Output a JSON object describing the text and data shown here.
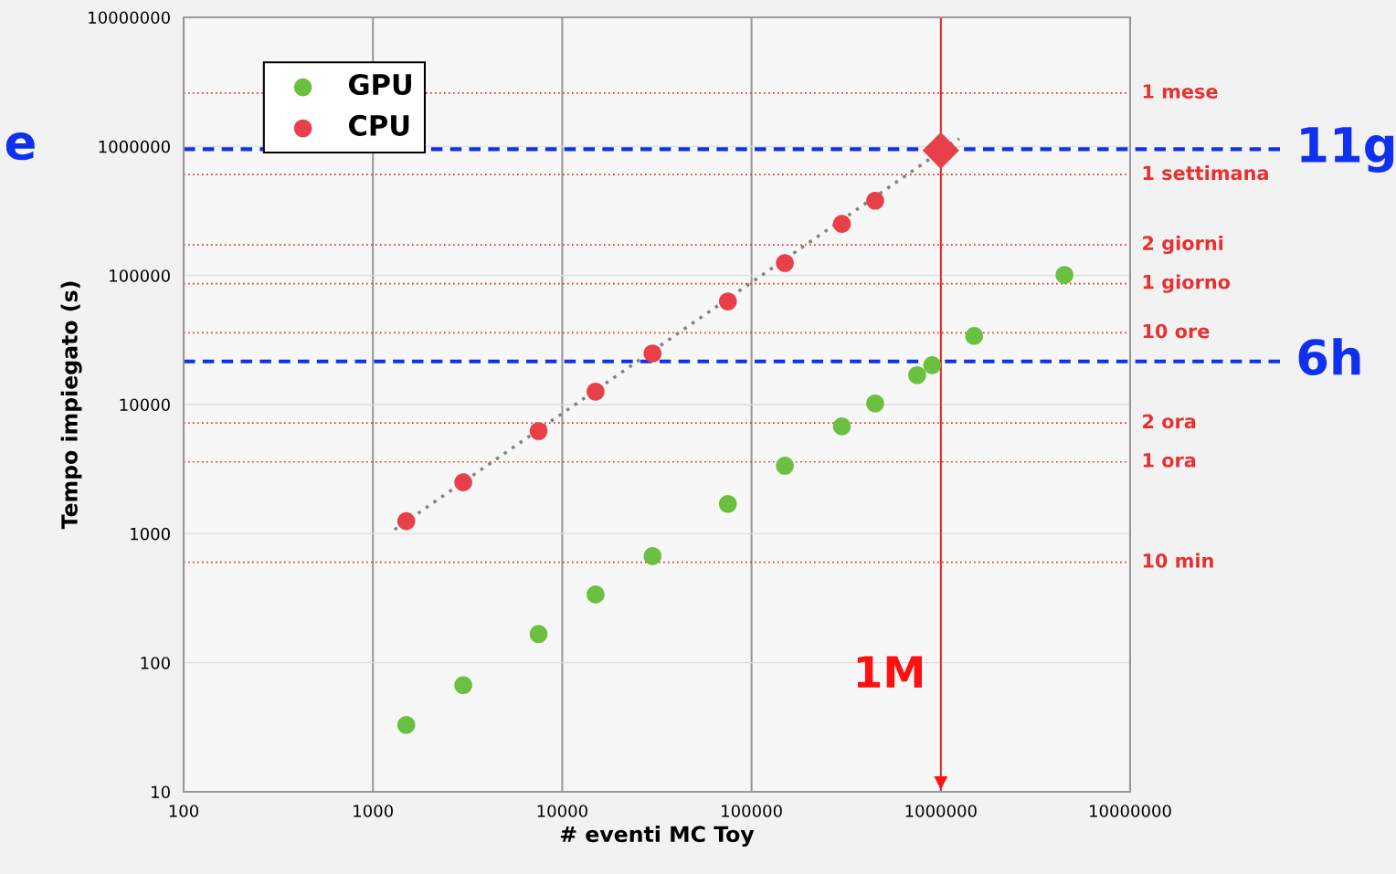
{
  "chart_data": {
    "type": "scatter",
    "xlabel": "# eventi MC Toy",
    "ylabel": "Tempo impiegato (s)",
    "log": "xy",
    "xlim": [
      100,
      10000000
    ],
    "ylim": [
      10,
      10000000
    ],
    "xticks": [
      100,
      1000,
      10000,
      100000,
      1000000,
      10000000
    ],
    "yticks": [
      10,
      100,
      1000,
      10000,
      100000,
      1000000,
      10000000
    ],
    "grid": true,
    "legend": "top left",
    "marker": "circle",
    "series": [
      {
        "name": "GPU",
        "color": "#6cc040",
        "x": [
          1500,
          3000,
          7500,
          15000,
          30000,
          75000,
          150000,
          300000,
          450000,
          750000,
          900000,
          1500000,
          4500000
        ],
        "values": [
          33,
          67,
          167,
          338,
          670,
          1700,
          3360,
          6780,
          10200,
          16900,
          20200,
          34000,
          101000
        ]
      },
      {
        "name": "CPU",
        "color": "#e8404a",
        "x": [
          1500,
          3000,
          7500,
          15000,
          30000,
          75000,
          150000,
          300000,
          450000
        ],
        "values": [
          1250,
          2500,
          6240,
          12600,
          24900,
          63000,
          125000,
          251000,
          380000
        ]
      },
      {
        "type": "scatter",
        "marker": "diamond",
        "color": "#e8404a",
        "x": [
          1000000
        ],
        "values": [
          930000
        ]
      },
      {
        "type": "line",
        "marker": "none",
        "line_style": "dotted",
        "color": "#808080",
        "x": [
          1300,
          1250000
        ],
        "values": [
          1075,
          1150000
        ]
      }
    ],
    "ref_lines": [
      {
        "axis": "y",
        "value": 2592000,
        "label": "1 mese",
        "color": "#e83030",
        "line_style": "dotted"
      },
      {
        "axis": "y",
        "value": 604800,
        "label": "1 settimana",
        "color": "#e83030",
        "line_style": "dotted"
      },
      {
        "axis": "y",
        "value": 172800,
        "label": "2 giorni",
        "color": "#e83030",
        "line_style": "dotted"
      },
      {
        "axis": "y",
        "value": 86400,
        "label": "1 giorno",
        "color": "#e83030",
        "line_style": "dotted"
      },
      {
        "axis": "y",
        "value": 36000,
        "label": "10 ore",
        "color": "#e83030",
        "line_style": "dotted"
      },
      {
        "axis": "y",
        "value": 7200,
        "label": "2 ora",
        "color": "#e83030",
        "line_style": "dotted"
      },
      {
        "axis": "y",
        "value": 3600,
        "label": "1 ora",
        "color": "#e83030",
        "line_style": "dotted"
      },
      {
        "axis": "y",
        "value": 600,
        "label": "10 min",
        "color": "#e83030",
        "line_style": "dotted"
      },
      {
        "axis": "y",
        "value": 950400,
        "label": "11g",
        "color": "#1030f0",
        "line_style": "dashed"
      },
      {
        "axis": "y",
        "value": 21600,
        "label": "6h",
        "color": "#1030f0",
        "line_style": "dashed"
      },
      {
        "axis": "x",
        "value": 1000000,
        "label": "1M",
        "color": "#ff1010",
        "line_style": "solid"
      }
    ],
    "annotations": [
      "e"
    ]
  }
}
